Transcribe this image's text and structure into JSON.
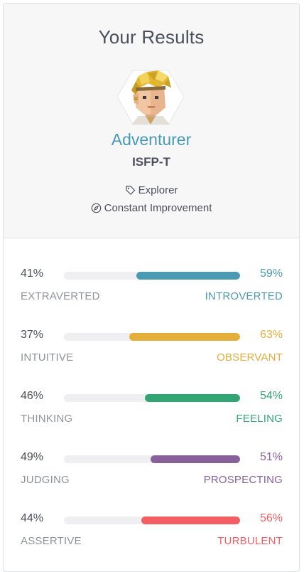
{
  "header": {
    "title": "Your Results",
    "type_name": "Adventurer",
    "type_code": "ISFP-T",
    "role": "Explorer",
    "role_icon": "tag-icon",
    "strategy": "Constant Improvement",
    "strategy_icon": "compass-icon",
    "avatar": "adventurer-avatar",
    "accent_color": "#4a9ab4"
  },
  "traits": [
    {
      "left_pct": "41%",
      "right_pct": "59%",
      "left_label": "EXTRAVERTED",
      "right_label": "INTROVERTED",
      "value": 59,
      "color": "#4a9ab4"
    },
    {
      "left_pct": "37%",
      "right_pct": "63%",
      "left_label": "INTUITIVE",
      "right_label": "OBSERVANT",
      "value": 63,
      "color": "#e4ae3a"
    },
    {
      "left_pct": "46%",
      "right_pct": "54%",
      "left_label": "THINKING",
      "right_label": "FEELING",
      "value": 54,
      "color": "#33a474"
    },
    {
      "left_pct": "49%",
      "right_pct": "51%",
      "left_label": "JUDGING",
      "right_label": "PROSPECTING",
      "value": 51,
      "color": "#88619a"
    },
    {
      "left_pct": "44%",
      "right_pct": "56%",
      "left_label": "ASSERTIVE",
      "right_label": "TURBULENT",
      "value": 56,
      "color": "#f25e62"
    }
  ]
}
